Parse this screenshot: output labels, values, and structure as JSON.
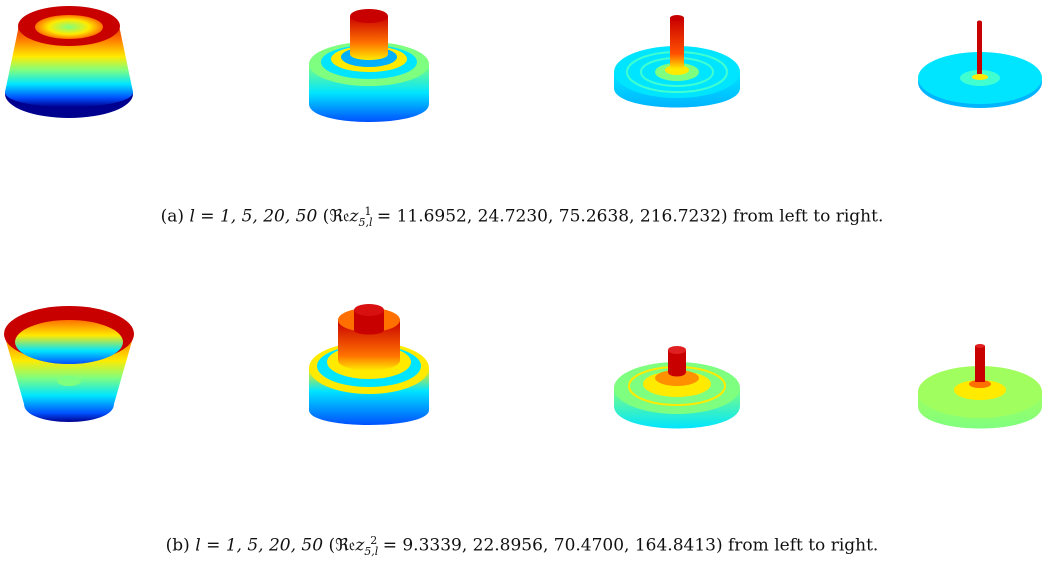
{
  "figure": {
    "row_a": {
      "label": "(a)",
      "l_values": "l = 1, 5, 20, 50",
      "re_prefix": "(",
      "re_symbol": "ℜ𝔢",
      "z_base": "z",
      "z_sub": "5,l",
      "z_sup": "1",
      "re_values": " = 11.6952, 24.7230, 75.2638, 216.7232)",
      "suffix": "from left to right."
    },
    "row_b": {
      "label": "(b)",
      "l_values": "l = 1, 5, 20, 50",
      "re_prefix": "(",
      "re_symbol": "ℜ𝔢",
      "z_base": "z",
      "z_sub": "5,l",
      "z_sup": "2",
      "re_values": " = 9.3339, 22.8956, 70.4700, 164.8413)",
      "suffix": "from left to right."
    }
  },
  "colors": {
    "jet_dark_blue": "#00008f",
    "jet_blue": "#0050ff",
    "jet_cyan": "#00e5ff",
    "jet_green": "#7fff7f",
    "jet_yellow": "#ffea00",
    "jet_orange": "#ff7000",
    "jet_red": "#c80000"
  }
}
